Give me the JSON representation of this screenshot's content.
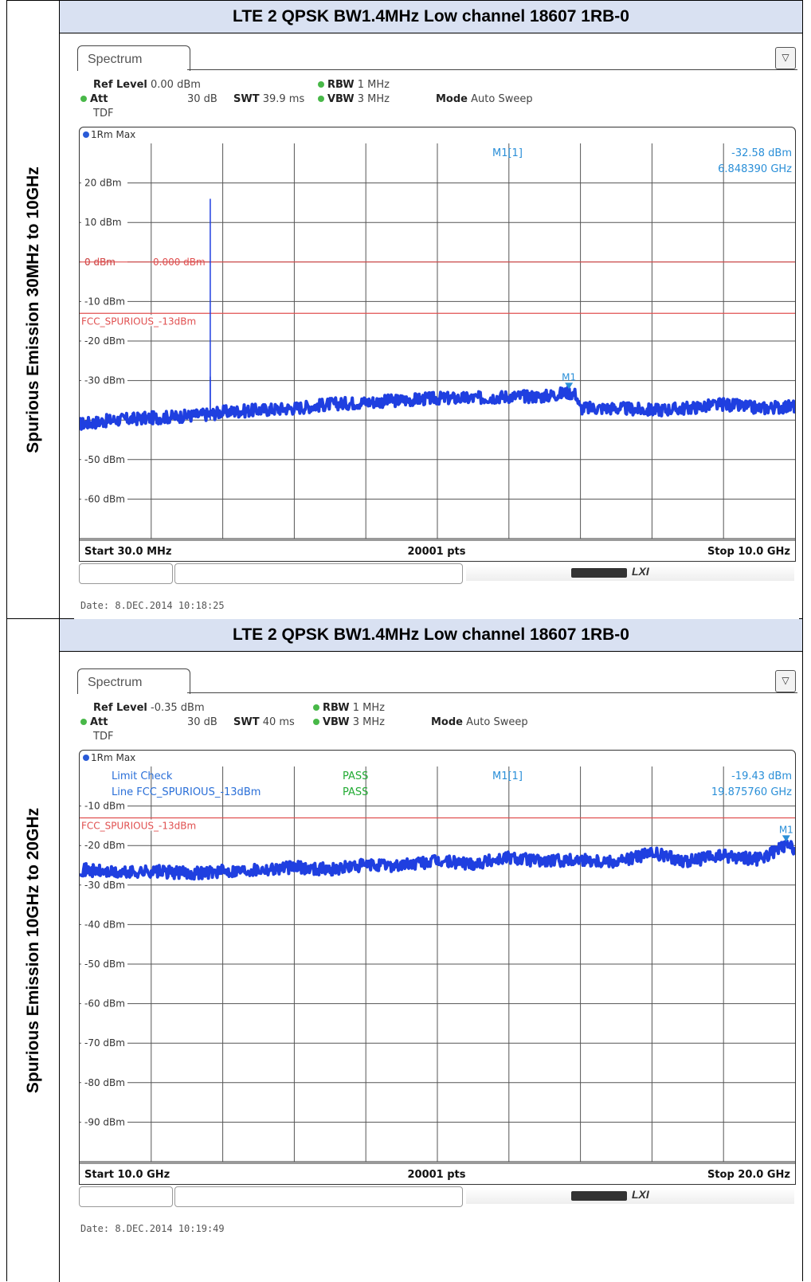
{
  "rows": [
    {
      "side_label": "Spurious Emission 30MHz to 10GHz",
      "title": "LTE 2 QPSK BW1.4MHz Low channel 18607 1RB-0",
      "tab": "Spectrum",
      "ref_level_label": "Ref Level",
      "ref_level": "0.00 dBm",
      "att_label": "Att",
      "att": "30 dB",
      "swt_label": "SWT",
      "swt": "39.9 ms",
      "rbw_label": "RBW",
      "rbw": "1 MHz",
      "vbw_label": "VBW",
      "vbw": "3 MHz",
      "mode_label": "Mode",
      "mode": "Auto Sweep",
      "tdf": "TDF",
      "trace": "1Rm Max",
      "marker_name": "M1[1]",
      "marker_level": "-32.58 dBm",
      "marker_freq": "6.848390 GHz",
      "start": "Start 30.0 MHz",
      "points": "20001 pts",
      "stop": "Stop 10.0 GHz",
      "date": "Date: 8.DEC.2014  10:18:25",
      "limit_line_name": "FCC_SPURIOUS_-13dBm",
      "display_line_label": "0.000 dBm",
      "limit_check_label": "",
      "limit_check_result": "",
      "line_label": "",
      "line_result": ""
    },
    {
      "side_label": "Spurious Emission 10GHz to 20GHz",
      "title": "LTE 2 QPSK BW1.4MHz Low channel 18607 1RB-0",
      "tab": "Spectrum",
      "ref_level_label": "Ref Level",
      "ref_level": "-0.35 dBm",
      "att_label": "Att",
      "att": "30 dB",
      "swt_label": "SWT",
      "swt": "40 ms",
      "rbw_label": "RBW",
      "rbw": "1 MHz",
      "vbw_label": "VBW",
      "vbw": "3 MHz",
      "mode_label": "Mode",
      "mode": "Auto Sweep",
      "tdf": "TDF",
      "trace": "1Rm Max",
      "marker_name": "M1[1]",
      "marker_level": "-19.43 dBm",
      "marker_freq": "19.875760 GHz",
      "start": "Start 10.0 GHz",
      "points": "20001 pts",
      "stop": "Stop 20.0 GHz",
      "date": "Date: 8.DEC.2014  10:19:49",
      "limit_line_name": "FCC_SPURIOUS_-13dBm",
      "display_line_label": "",
      "limit_check_label": "Limit Check",
      "limit_check_result": "PASS",
      "line_label": "Line FCC_SPURIOUS_-13dBm",
      "line_result": "PASS"
    }
  ],
  "chart_data": [
    {
      "type": "line",
      "xlabel": "",
      "ylabel": "",
      "x_range_ghz": [
        0.03,
        10.0
      ],
      "y_ticks": [
        "20 dBm",
        "10 dBm",
        "0 dBm",
        "-10 dBm",
        "-20 dBm",
        "-30 dBm",
        "-50 dBm",
        "-60 dBm"
      ],
      "ylim": [
        -70,
        30
      ],
      "grid": true,
      "limit_line_dbm": -13,
      "display_line_dbm": 0,
      "marker": {
        "label": "M1",
        "x_ghz": 6.84839,
        "y_dbm": -32.58
      },
      "series": [
        {
          "x_ghz": [
            0.03,
            0.5,
            1.0,
            1.5,
            1.85,
            2.0,
            2.5,
            3.0,
            3.5,
            4.0,
            4.5,
            5.0,
            5.5,
            6.0,
            6.5,
            6.85,
            6.95,
            7.0,
            7.5,
            8.0,
            8.5,
            9.0,
            9.5,
            10.0
          ],
          "y_dbm": [
            -41,
            -40,
            -39.5,
            -39,
            -38.5,
            -38,
            -37.5,
            -37,
            -36,
            -35.5,
            -35,
            -34.5,
            -34.5,
            -34,
            -34,
            -33,
            -33.5,
            -37,
            -37,
            -37.5,
            -37,
            -36,
            -37,
            -36.5
          ]
        }
      ],
      "spikes": [
        {
          "x_ghz": 1.85,
          "y_dbm": 16
        },
        {
          "x_ghz": 1.85,
          "y_dbm": -29
        }
      ]
    },
    {
      "type": "line",
      "xlabel": "",
      "ylabel": "",
      "x_range_ghz": [
        10.0,
        20.0
      ],
      "y_ticks": [
        "-10 dBm",
        "-20 dBm",
        "-30 dBm",
        "-40 dBm",
        "-50 dBm",
        "-60 dBm",
        "-70 dBm",
        "-80 dBm",
        "-90 dBm"
      ],
      "ylim": [
        -100,
        0
      ],
      "grid": true,
      "limit_line_dbm": -13,
      "marker": {
        "label": "M1",
        "x_ghz": 19.87576,
        "y_dbm": -19.43
      },
      "series": [
        {
          "x_ghz": [
            10.0,
            10.5,
            11.0,
            11.5,
            12.0,
            12.5,
            13.0,
            13.5,
            14.0,
            14.5,
            15.0,
            15.5,
            16.0,
            16.5,
            17.0,
            17.5,
            18.0,
            18.5,
            19.0,
            19.5,
            19.88,
            20.0
          ],
          "y_dbm": [
            -26,
            -27,
            -26.5,
            -27,
            -26.5,
            -26,
            -25.5,
            -26,
            -25,
            -25,
            -24,
            -24.5,
            -23,
            -24,
            -23.5,
            -24,
            -22,
            -24,
            -22.5,
            -23.5,
            -20,
            -21
          ]
        }
      ]
    }
  ]
}
